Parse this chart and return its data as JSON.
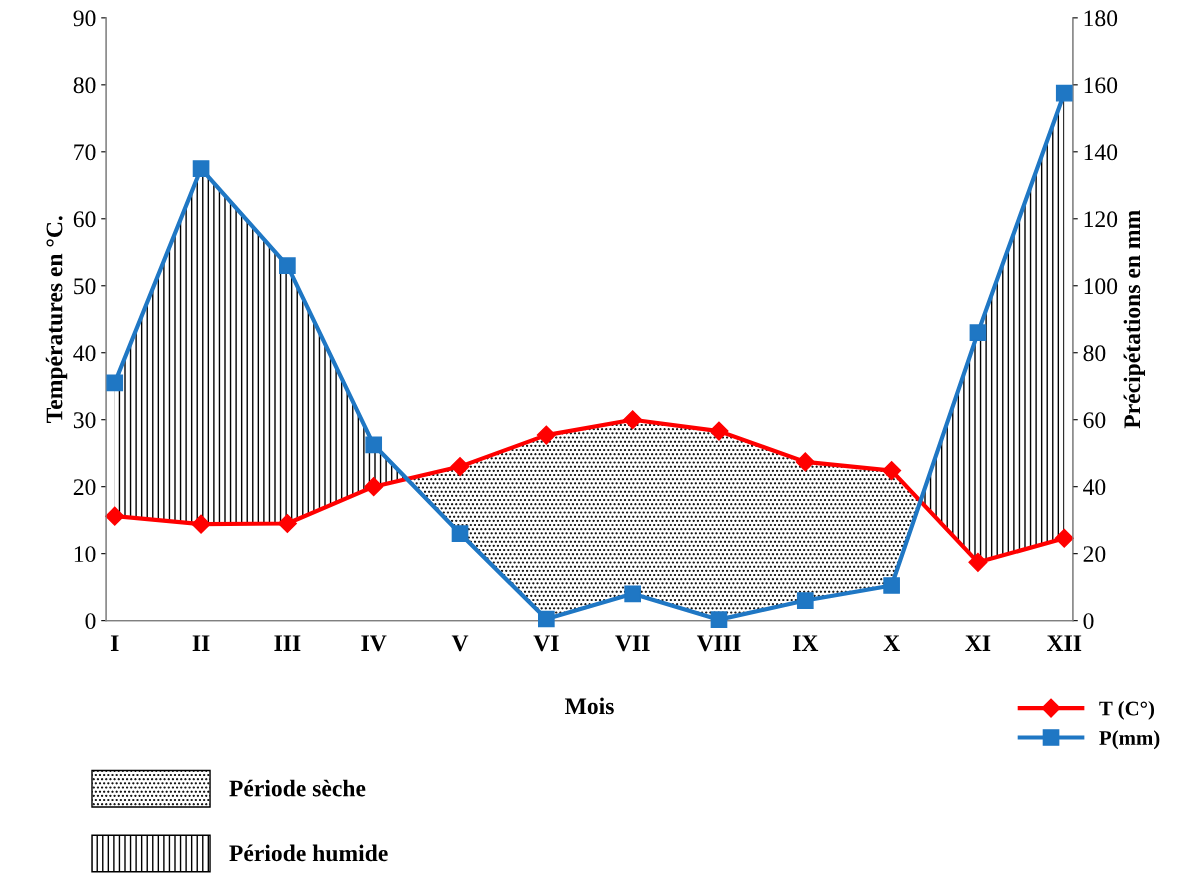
{
  "chart_data": {
    "type": "line",
    "xlabel": "Mois",
    "ylabel": "Températures en °C.",
    "y2label": "Précipétations en mm",
    "categories": [
      "I",
      "II",
      "III",
      "IV",
      "V",
      "VI",
      "VII",
      "VIII",
      "IX",
      "X",
      "XI",
      "XII"
    ],
    "series": [
      {
        "name": "T (C°)",
        "color": "#ff0000",
        "marker": "diamond",
        "values": [
          15.6,
          14.4,
          14.5,
          20,
          23,
          27.7,
          30,
          28.3,
          23.7,
          22.4,
          8.7,
          12.3
        ]
      },
      {
        "name": "P(mm)",
        "color": "#1f77c4",
        "marker": "square",
        "axis": "y2",
        "values": [
          71,
          135,
          106,
          52.5,
          26,
          0.5,
          8,
          0.3,
          6,
          10.5,
          86,
          157.5
        ]
      }
    ],
    "annotations": [
      "Période sèche",
      "Période humide"
    ],
    "ylim": [
      0,
      90
    ],
    "yticks": [
      0,
      10,
      20,
      30,
      40,
      50,
      60,
      70,
      80,
      90
    ],
    "y2lim": [
      0,
      180
    ],
    "y2ticks": [
      0,
      20,
      40,
      60,
      80,
      100,
      120,
      140,
      160,
      180
    ],
    "legend": "bottom right",
    "grid": false
  }
}
